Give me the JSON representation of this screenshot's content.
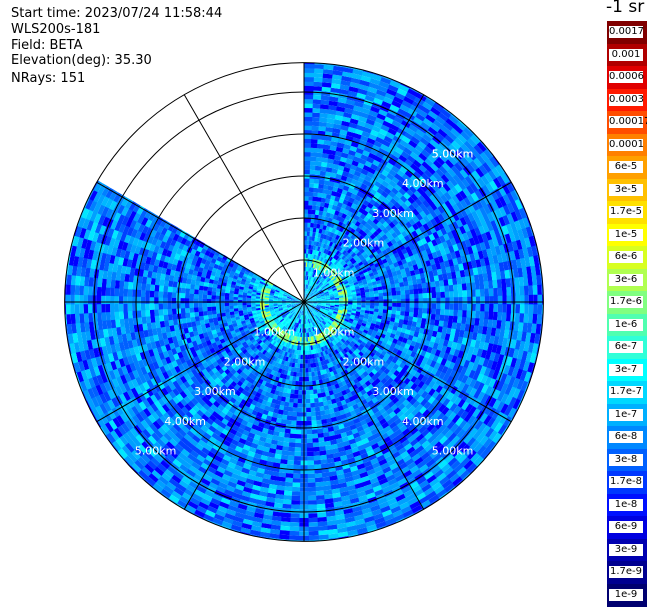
{
  "info": {
    "start_time": "Start time: 2023/07/24 11:58:44",
    "instrument": "WLS200s-181",
    "field": "Field: BETA",
    "elevation": "Elevation(deg): 35.30",
    "nrays": "NRays: 151"
  },
  "colorbar": {
    "unit": "-1 sr",
    "labels": [
      "0.0017",
      "0.001",
      "0.0006",
      "0.0003",
      "0.00017",
      "0.0001",
      "6e-5",
      "3e-5",
      "1.7e-5",
      "1e-5",
      "6e-6",
      "3e-6",
      "1.7e-6",
      "1e-6",
      "6e-7",
      "3e-7",
      "1.7e-7",
      "1e-7",
      "6e-8",
      "3e-8",
      "1.7e-8",
      "1e-8",
      "6e-9",
      "3e-9",
      "1.7e-9",
      "1e-9"
    ],
    "colors": [
      "#800000",
      "#b00000",
      "#e00000",
      "#ff1a00",
      "#ff4d00",
      "#ff8000",
      "#ffa000",
      "#ffc000",
      "#ffe000",
      "#ffff00",
      "#d8ff20",
      "#b0ff50",
      "#80ff80",
      "#50ffb0",
      "#30ffd8",
      "#00ffff",
      "#00d8ff",
      "#00b0ff",
      "#0088ff",
      "#0060ff",
      "#0038ff",
      "#0010ff",
      "#0000e0",
      "#0000b0",
      "#000090",
      "#000070"
    ]
  },
  "chart_data": {
    "type": "heatmap",
    "projection": "polar (PPI)",
    "field": "BETA",
    "elevation_deg": 35.3,
    "nrays": 151,
    "range_rings_km": [
      1,
      2,
      3,
      4,
      5
    ],
    "ring_labels": [
      "1.00km",
      "2.00km",
      "3.00km",
      "4.00km",
      "5.00km"
    ],
    "spoke_interval_deg": 30,
    "max_range_km": 5.7,
    "no_data_sector_deg": [
      300,
      360
    ],
    "data_description": {
      "near_range_ring_km": 0.95,
      "near_range_value": "1.7e-6 to 6e-7",
      "background_value": "1e-7 to 1e-8"
    }
  }
}
